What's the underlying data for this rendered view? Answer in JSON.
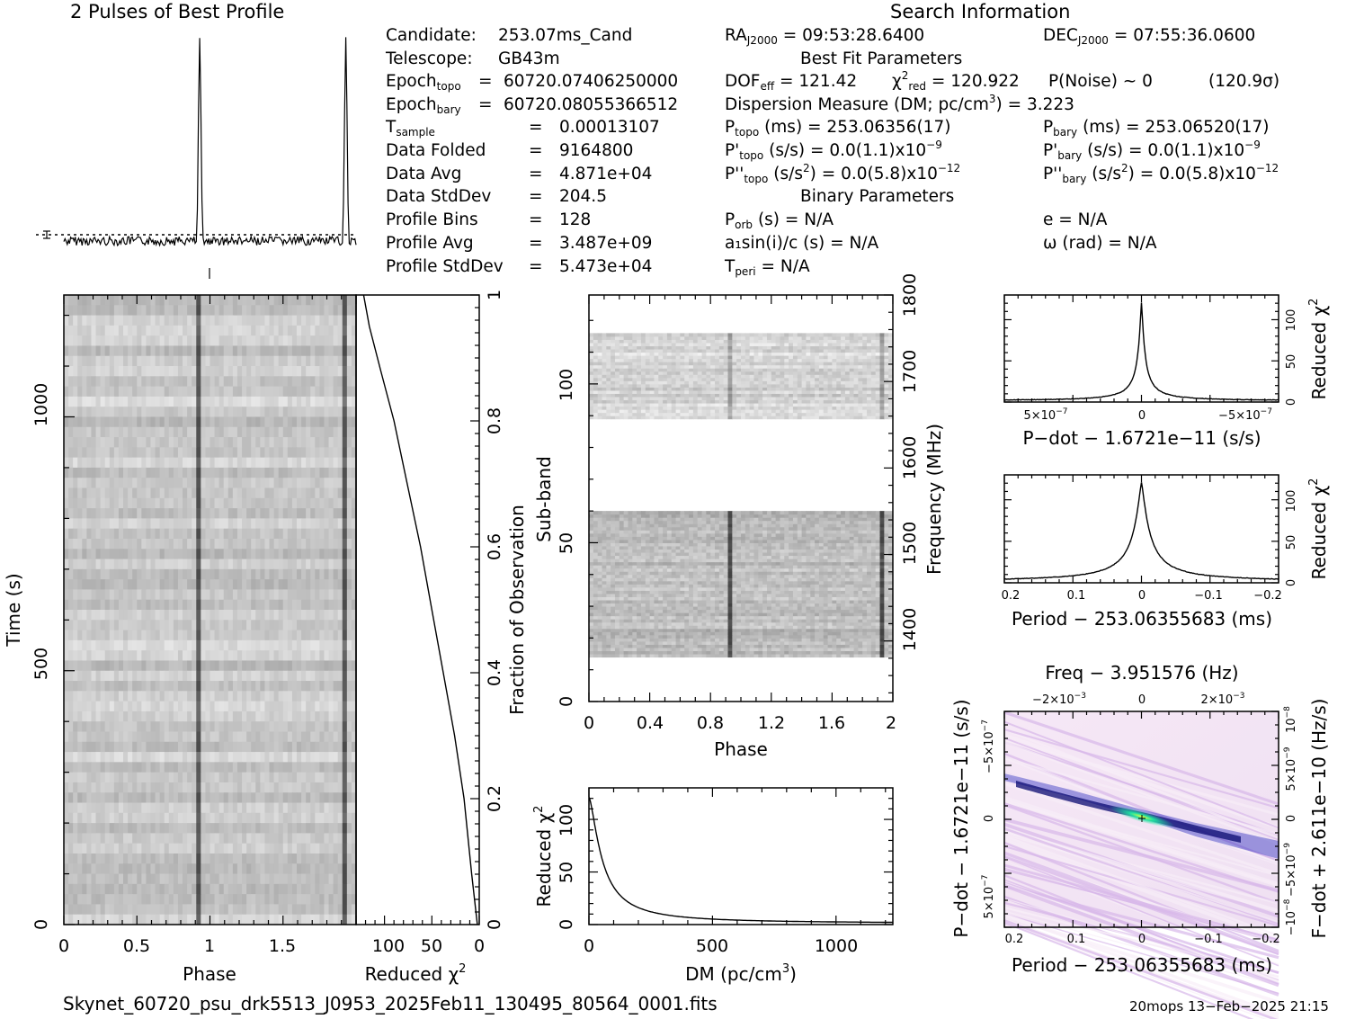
{
  "titles": {
    "profile": "2 Pulses of Best Profile",
    "search": "Search Information",
    "best_fit": "Best Fit Parameters",
    "binary": "Binary Parameters"
  },
  "info_left": [
    {
      "label": "Candidate:",
      "eq": "",
      "value": "253.07ms_Cand"
    },
    {
      "label": "Telescope:",
      "eq": "",
      "value": "GB43m"
    },
    {
      "label": "Epoch",
      "sub": "topo",
      "eq": "=",
      "value": "60720.07406250000"
    },
    {
      "label": "Epoch",
      "sub": "bary",
      "eq": "=",
      "value": "60720.08055366512"
    },
    {
      "label": "T",
      "sub": "sample",
      "eq": "=",
      "value": "0.00013107"
    },
    {
      "label": "Data Folded",
      "eq": "=",
      "value": "9164800"
    },
    {
      "label": "Data Avg",
      "eq": "=",
      "value": "4.871e+04"
    },
    {
      "label": "Data StdDev",
      "eq": "=",
      "value": "204.5"
    },
    {
      "label": "Profile Bins",
      "eq": "=",
      "value": "128"
    },
    {
      "label": "Profile Avg",
      "eq": "=",
      "value": "3.487e+09"
    },
    {
      "label": "Profile StdDev",
      "eq": "=",
      "value": "5.473e+04"
    }
  ],
  "info_right": {
    "ra": "= 09:53:28.6400",
    "dec": "= 07:55:36.0600",
    "dof": "= 121.42",
    "chi2": "= 120.922",
    "pnoise": "P(Noise) ~ 0",
    "sigma": "(120.9σ)",
    "dm": "Dispersion Measure (DM; pc/cm",
    "dm_value": ") = 3.223",
    "ptopo": "(ms) =  253.06356(17)",
    "pbary": "(ms) =  253.06520(17)",
    "pdtopo": "(s/s) = 0.0(1.1)x10",
    "pdtopo_exp": "−9",
    "pdbary": "(s/s) = 0.0(1.1)x10",
    "pdbary_exp": "−9",
    "pddtopo": "(s/s",
    "pddtopo_val": ") = 0.0(5.8)x10",
    "pddtopo_exp": "−12",
    "pddbary": "(s/s",
    "pddbary_val": ") = 0.0(5.8)x10",
    "pddbary_exp": "−12",
    "porb": "(s) = N/A",
    "e": "e = N/A",
    "a1": "a₁sin(i)/c (s) = N/A",
    "omega": "ω (rad) = N/A",
    "tperi": "= N/A"
  },
  "footer": {
    "filename": "Skynet_60720_psu_drk5513_J0953_2025Feb11_130495_80564_0001.fits",
    "stamp": "20mops 13−Feb−2025 21:15"
  },
  "chart_data": [
    {
      "type": "line",
      "title": "2 Pulses of Best Profile",
      "x_range": [
        0,
        2
      ],
      "peaks_at_phase": [
        0.93,
        1.93
      ],
      "notes": "profile with two narrow pulses near phase 0.93 and 1.93"
    },
    {
      "type": "heatmap",
      "xlabel": "Phase",
      "ylabel": "Time (s)",
      "xticks": [
        "0",
        "0.5",
        "1",
        "1.5"
      ],
      "yticks": [
        "0",
        "500",
        "1000"
      ],
      "xlim": [
        0,
        2
      ],
      "ylim": [
        0,
        1240
      ],
      "pulse_phase": [
        0.93,
        1.93
      ]
    },
    {
      "type": "line",
      "xlabel": "Reduced χ²",
      "ylabel": "Fraction of Observation",
      "xticks": [
        "100",
        "50",
        "0"
      ],
      "yticks": [
        "0",
        "0.2",
        "0.4",
        "0.6",
        "0.8",
        "1"
      ],
      "xlim": [
        130,
        0
      ],
      "ylim": [
        0,
        1
      ],
      "x": [
        2,
        8,
        16,
        26,
        38,
        50,
        62,
        76,
        90,
        104,
        116,
        122
      ],
      "y": [
        0.0,
        0.08,
        0.2,
        0.3,
        0.4,
        0.5,
        0.6,
        0.7,
        0.8,
        0.88,
        0.95,
        1.0
      ]
    },
    {
      "type": "heatmap",
      "xlabel": "Phase",
      "ylabel": "Sub-band",
      "y2label": "Frequency (MHz)",
      "xticks": [
        "0",
        "0.4",
        "0.8",
        "1.2",
        "1.6",
        "2"
      ],
      "yticks": [
        "0",
        "50",
        "100"
      ],
      "y2ticks": [
        "1400",
        "1500",
        "1600",
        "1700",
        "1800"
      ],
      "xlim": [
        0,
        2
      ],
      "ylim": [
        0,
        128
      ],
      "y2lim": [
        1330,
        1800
      ],
      "populated_subbands": [
        [
          14,
          60
        ],
        [
          89,
          116
        ]
      ],
      "pulse_phase": [
        0.93,
        1.93
      ]
    },
    {
      "type": "line",
      "xlabel": "DM (pc/cm³)",
      "ylabel": "Reduced χ²",
      "xticks": [
        "0",
        "500",
        "1000"
      ],
      "yticks": [
        "0",
        "50",
        "100"
      ],
      "xlim": [
        0,
        1230
      ],
      "ylim": [
        0,
        130
      ],
      "x": [
        3,
        20,
        50,
        100,
        150,
        200,
        300,
        400,
        500,
        700,
        1000,
        1230
      ],
      "y": [
        121,
        90,
        50,
        25,
        15,
        10,
        6,
        4,
        3,
        2,
        1.5,
        1
      ]
    },
    {
      "type": "line",
      "xlabel": "P−dot − 1.6721e−11 (s/s)",
      "ylabel": "Reduced χ²",
      "xticks": [
        "5×10⁻⁷",
        "0",
        "−5×10⁻⁷"
      ],
      "yticks": [
        "0",
        "50",
        "100"
      ],
      "xlim": [
        8.8e-07,
        -8.8e-07
      ],
      "ylim": [
        0,
        130
      ],
      "peak": {
        "x": 0,
        "y": 121
      }
    },
    {
      "type": "line",
      "xlabel": "Period − 253.06355683 (ms)",
      "ylabel": "Reduced χ²",
      "xticks": [
        "0.2",
        "0.1",
        "0",
        "−0.1",
        "−0.2"
      ],
      "yticks": [
        "0",
        "50",
        "100"
      ],
      "xlim": [
        0.2,
        -0.2
      ],
      "ylim": [
        0,
        130
      ],
      "peak": {
        "x": 0,
        "y": 121
      }
    },
    {
      "type": "heatmap",
      "title": "Freq − 3.951576 (Hz)",
      "xlabel": "Period − 253.06355683 (ms)",
      "ylabel": "P−dot − 1.6721e−11 (s/s)",
      "y2label": "F−dot + 2.611e−10 (Hz/s)",
      "xticks": [
        "0.2",
        "0.1",
        "0",
        "−0.1",
        "−0.2"
      ],
      "x2ticks": [
        "−2×10⁻³",
        "0",
        "2×10⁻³"
      ],
      "yticks": [
        "−5×10⁻⁷",
        "0",
        "5×10⁻⁷"
      ],
      "y2ticks": [
        "10⁻⁸",
        "5×10⁻⁹",
        "0",
        "−5×10⁻⁹",
        "−10⁻⁸"
      ],
      "xlim": [
        0.2,
        -0.2
      ],
      "ylim": [
        -8.8e-07,
        8.8e-07
      ]
    }
  ]
}
